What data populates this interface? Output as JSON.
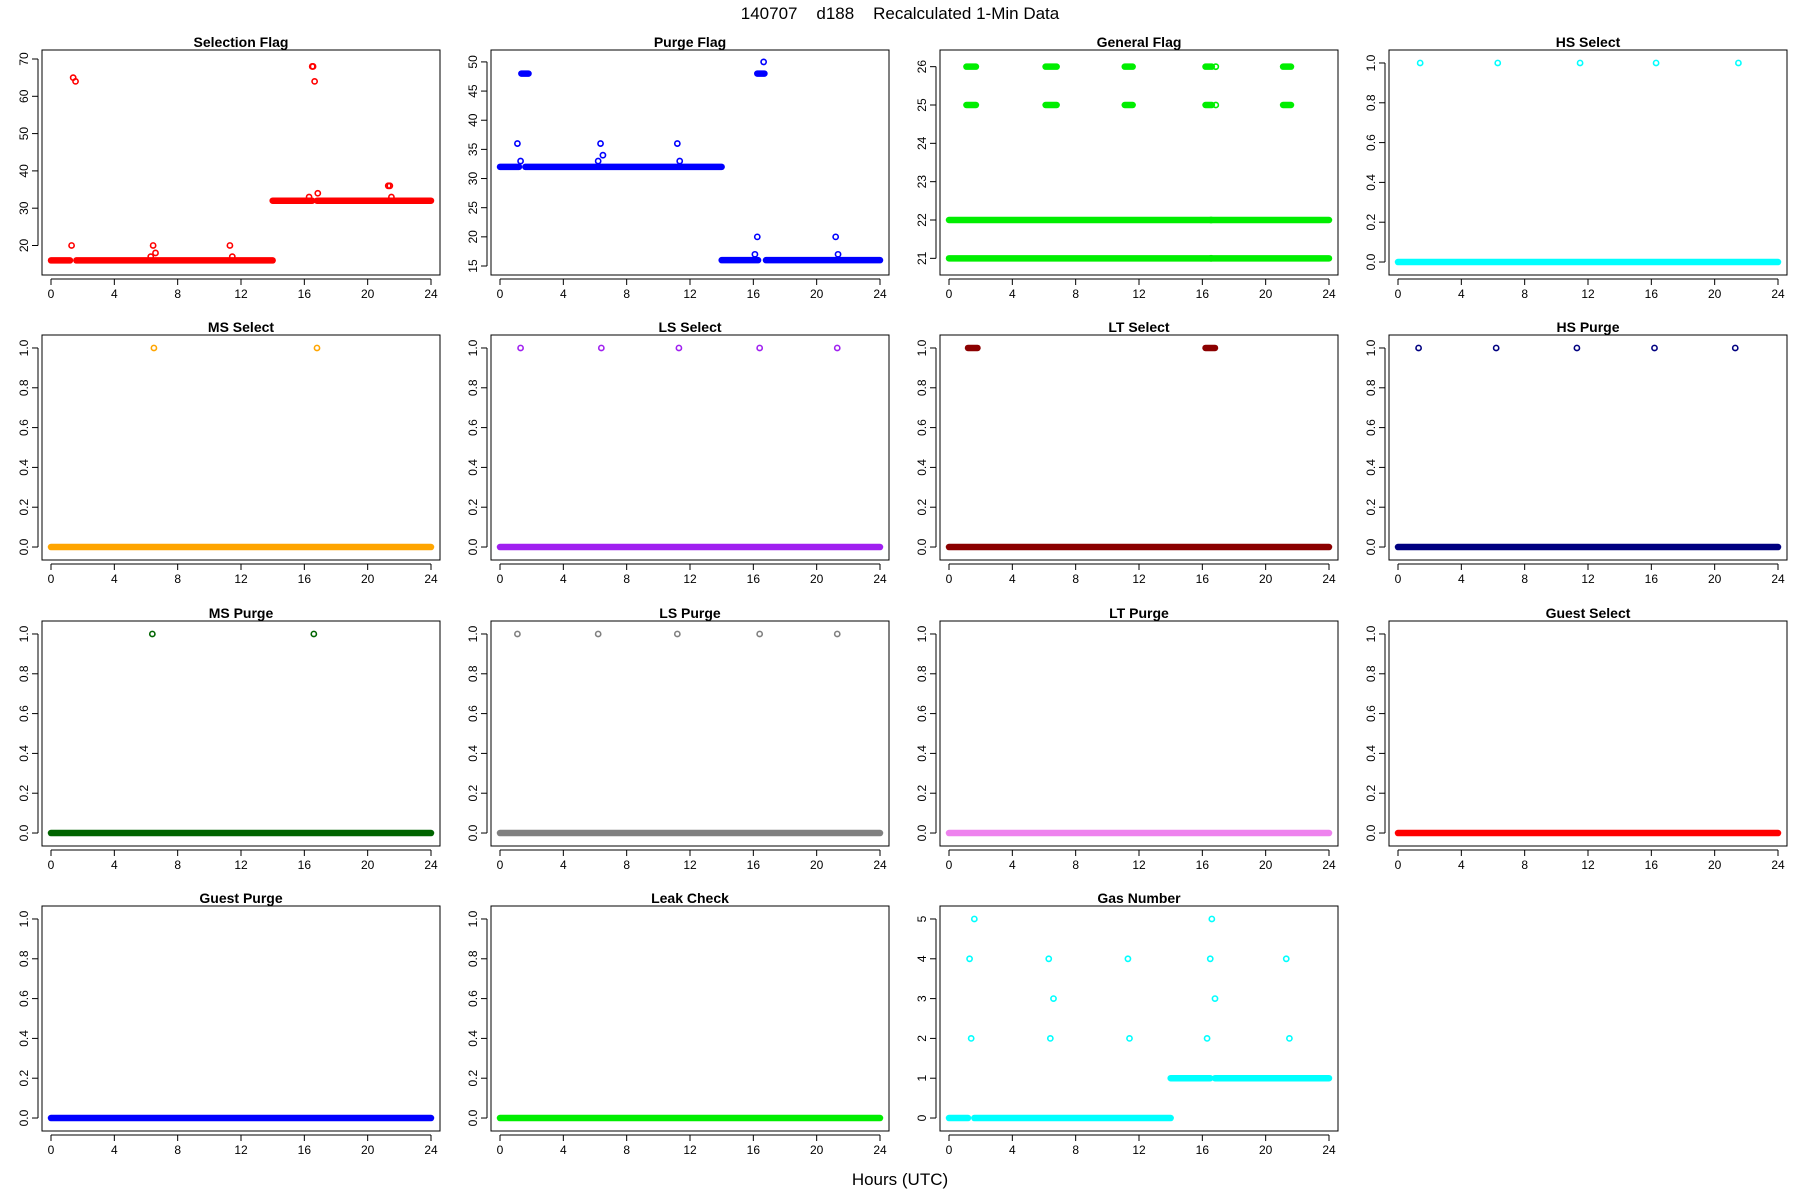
{
  "figure": {
    "title": "140707    d188    Recalculated 1-Min Data",
    "xlabel": "Hours (UTC)"
  },
  "chart_data": [
    {
      "type": "scatter",
      "title": "Selection Flag",
      "color": "#ff0000",
      "xlim": [
        0,
        24
      ],
      "ylim": [
        14.5,
        70
      ],
      "xticks": [
        0,
        4,
        8,
        12,
        16,
        20,
        24
      ],
      "yticks": [
        20,
        30,
        40,
        50,
        60,
        70
      ],
      "runs": [
        [
          0,
          1.2,
          16
        ],
        [
          1.6,
          14.0,
          16
        ],
        [
          14.0,
          16.5,
          32
        ],
        [
          16.8,
          24,
          32
        ]
      ],
      "points": [
        [
          1.3,
          20
        ],
        [
          1.4,
          65
        ],
        [
          1.55,
          64
        ],
        [
          6.3,
          17
        ],
        [
          6.45,
          20
        ],
        [
          6.6,
          18
        ],
        [
          11.3,
          20
        ],
        [
          11.45,
          17
        ],
        [
          16.3,
          33
        ],
        [
          16.5,
          68
        ],
        [
          16.55,
          68
        ],
        [
          16.65,
          64
        ],
        [
          16.85,
          34
        ],
        [
          21.3,
          36
        ],
        [
          21.4,
          36
        ],
        [
          21.5,
          33
        ]
      ]
    },
    {
      "type": "scatter",
      "title": "Purge Flag",
      "color": "#0000ff",
      "xlim": [
        0,
        24
      ],
      "ylim": [
        15,
        50.5
      ],
      "xticks": [
        0,
        4,
        8,
        12,
        16,
        20,
        24
      ],
      "yticks": [
        15,
        20,
        25,
        30,
        35,
        40,
        45,
        50
      ],
      "runs": [
        [
          0,
          1.2,
          32
        ],
        [
          1.35,
          1.8,
          48
        ],
        [
          1.6,
          14.0,
          32
        ],
        [
          14.0,
          16.3,
          16
        ],
        [
          16.25,
          16.7,
          48
        ],
        [
          16.8,
          24,
          16
        ]
      ],
      "points": [
        [
          1.1,
          36
        ],
        [
          1.3,
          33
        ],
        [
          6.2,
          33
        ],
        [
          6.35,
          36
        ],
        [
          6.5,
          34
        ],
        [
          11.2,
          36
        ],
        [
          11.35,
          33
        ],
        [
          16.1,
          17
        ],
        [
          16.25,
          20
        ],
        [
          16.65,
          50
        ],
        [
          21.2,
          20
        ],
        [
          21.35,
          17
        ]
      ]
    },
    {
      "type": "scatter",
      "title": "General Flag",
      "color": "#00ee00",
      "xlim": [
        0,
        24
      ],
      "ylim": [
        20.8,
        26.2
      ],
      "xticks": [
        0,
        4,
        8,
        12,
        16,
        20,
        24
      ],
      "yticks": [
        21,
        22,
        23,
        24,
        25,
        26
      ],
      "runs": [
        [
          0,
          24,
          21
        ],
        [
          0,
          24,
          22
        ],
        [
          1.1,
          1.7,
          26
        ],
        [
          1.1,
          1.7,
          25
        ],
        [
          6.1,
          6.8,
          26
        ],
        [
          6.1,
          6.8,
          25
        ],
        [
          11.1,
          11.6,
          26
        ],
        [
          11.1,
          11.6,
          25
        ],
        [
          16.2,
          16.6,
          26
        ],
        [
          16.2,
          16.6,
          25
        ],
        [
          21.1,
          21.6,
          26
        ],
        [
          21.1,
          21.6,
          25
        ]
      ],
      "points": [
        [
          16.85,
          26
        ],
        [
          16.85,
          25
        ],
        [
          16.55,
          22
        ],
        [
          16.55,
          21
        ]
      ]
    },
    {
      "type": "scatter",
      "title": "HS Select",
      "color": "#00ffff",
      "xlim": [
        0,
        24
      ],
      "ylim": [
        -0.02,
        1.02
      ],
      "xticks": [
        0,
        4,
        8,
        12,
        16,
        20,
        24
      ],
      "yticks": [
        0.0,
        0.2,
        0.4,
        0.6,
        0.8,
        1.0
      ],
      "runs": [
        [
          0,
          24,
          0
        ]
      ],
      "points": [
        [
          1.4,
          1
        ],
        [
          6.3,
          1
        ],
        [
          11.5,
          1
        ],
        [
          16.3,
          1
        ],
        [
          21.5,
          1
        ]
      ]
    },
    {
      "type": "scatter",
      "title": "MS Select",
      "color": "#ffa500",
      "xlim": [
        0,
        24
      ],
      "ylim": [
        -0.02,
        1.02
      ],
      "xticks": [
        0,
        4,
        8,
        12,
        16,
        20,
        24
      ],
      "yticks": [
        0.0,
        0.2,
        0.4,
        0.6,
        0.8,
        1.0
      ],
      "runs": [
        [
          0,
          24,
          0
        ]
      ],
      "points": [
        [
          6.5,
          1
        ],
        [
          16.8,
          1
        ]
      ]
    },
    {
      "type": "scatter",
      "title": "LS Select",
      "color": "#a020f0",
      "xlim": [
        0,
        24
      ],
      "ylim": [
        -0.02,
        1.02
      ],
      "xticks": [
        0,
        4,
        8,
        12,
        16,
        20,
        24
      ],
      "yticks": [
        0.0,
        0.2,
        0.4,
        0.6,
        0.8,
        1.0
      ],
      "runs": [
        [
          0,
          24,
          0
        ]
      ],
      "points": [
        [
          1.3,
          1
        ],
        [
          6.4,
          1
        ],
        [
          11.3,
          1
        ],
        [
          16.4,
          1
        ],
        [
          21.3,
          1
        ]
      ]
    },
    {
      "type": "scatter",
      "title": "LT Select",
      "color": "#8b0000",
      "xlim": [
        0,
        24
      ],
      "ylim": [
        -0.02,
        1.02
      ],
      "xticks": [
        0,
        4,
        8,
        12,
        16,
        20,
        24
      ],
      "yticks": [
        0.0,
        0.2,
        0.4,
        0.6,
        0.8,
        1.0
      ],
      "runs": [
        [
          0,
          24,
          0
        ],
        [
          1.2,
          1.8,
          1
        ],
        [
          16.2,
          16.8,
          1
        ]
      ],
      "points": []
    },
    {
      "type": "scatter",
      "title": "HS Purge",
      "color": "#000080",
      "xlim": [
        0,
        24
      ],
      "ylim": [
        -0.02,
        1.02
      ],
      "xticks": [
        0,
        4,
        8,
        12,
        16,
        20,
        24
      ],
      "yticks": [
        0.0,
        0.2,
        0.4,
        0.6,
        0.8,
        1.0
      ],
      "runs": [
        [
          0,
          24,
          0
        ]
      ],
      "points": [
        [
          1.3,
          1
        ],
        [
          6.2,
          1
        ],
        [
          11.3,
          1
        ],
        [
          16.2,
          1
        ],
        [
          21.3,
          1
        ]
      ]
    },
    {
      "type": "scatter",
      "title": "MS Purge",
      "color": "#006400",
      "xlim": [
        0,
        24
      ],
      "ylim": [
        -0.02,
        1.02
      ],
      "xticks": [
        0,
        4,
        8,
        12,
        16,
        20,
        24
      ],
      "yticks": [
        0.0,
        0.2,
        0.4,
        0.6,
        0.8,
        1.0
      ],
      "runs": [
        [
          0,
          24,
          0
        ]
      ],
      "points": [
        [
          6.4,
          1
        ],
        [
          16.6,
          1
        ]
      ]
    },
    {
      "type": "scatter",
      "title": "LS Purge",
      "color": "#808080",
      "xlim": [
        0,
        24
      ],
      "ylim": [
        -0.02,
        1.02
      ],
      "xticks": [
        0,
        4,
        8,
        12,
        16,
        20,
        24
      ],
      "yticks": [
        0.0,
        0.2,
        0.4,
        0.6,
        0.8,
        1.0
      ],
      "runs": [
        [
          0,
          24,
          0
        ]
      ],
      "points": [
        [
          1.1,
          1
        ],
        [
          6.2,
          1
        ],
        [
          11.2,
          1
        ],
        [
          16.4,
          1
        ],
        [
          21.3,
          1
        ]
      ]
    },
    {
      "type": "scatter",
      "title": "LT Purge",
      "color": "#ee82ee",
      "xlim": [
        0,
        24
      ],
      "ylim": [
        -0.02,
        1.02
      ],
      "xticks": [
        0,
        4,
        8,
        12,
        16,
        20,
        24
      ],
      "yticks": [
        0.0,
        0.2,
        0.4,
        0.6,
        0.8,
        1.0
      ],
      "runs": [
        [
          0,
          24,
          0
        ]
      ],
      "points": []
    },
    {
      "type": "scatter",
      "title": "Guest Select",
      "color": "#ff0000",
      "xlim": [
        0,
        24
      ],
      "ylim": [
        -0.02,
        1.02
      ],
      "xticks": [
        0,
        4,
        8,
        12,
        16,
        20,
        24
      ],
      "yticks": [
        0.0,
        0.2,
        0.4,
        0.6,
        0.8,
        1.0
      ],
      "runs": [
        [
          0,
          24,
          0
        ]
      ],
      "points": []
    },
    {
      "type": "scatter",
      "title": "Guest Purge",
      "color": "#0000ff",
      "xlim": [
        0,
        24
      ],
      "ylim": [
        -0.02,
        1.02
      ],
      "xticks": [
        0,
        4,
        8,
        12,
        16,
        20,
        24
      ],
      "yticks": [
        0.0,
        0.2,
        0.4,
        0.6,
        0.8,
        1.0
      ],
      "runs": [
        [
          0,
          24,
          0
        ]
      ],
      "points": []
    },
    {
      "type": "scatter",
      "title": "Leak Check",
      "color": "#00ee00",
      "xlim": [
        0,
        24
      ],
      "ylim": [
        -0.02,
        1.02
      ],
      "xticks": [
        0,
        4,
        8,
        12,
        16,
        20,
        24
      ],
      "yticks": [
        0.0,
        0.2,
        0.4,
        0.6,
        0.8,
        1.0
      ],
      "runs": [
        [
          0,
          24,
          0
        ]
      ],
      "points": []
    },
    {
      "type": "scatter",
      "title": "Gas Number",
      "color": "#00ffff",
      "xlim": [
        0,
        24
      ],
      "ylim": [
        -0.1,
        5.1
      ],
      "xticks": [
        0,
        4,
        8,
        12,
        16,
        20,
        24
      ],
      "yticks": [
        0,
        1,
        2,
        3,
        4,
        5
      ],
      "runs": [
        [
          0,
          1.2,
          0
        ],
        [
          1.6,
          14.0,
          0
        ],
        [
          14.0,
          16.5,
          1
        ],
        [
          16.8,
          24,
          1
        ]
      ],
      "points": [
        [
          1.3,
          4
        ],
        [
          1.4,
          2
        ],
        [
          1.6,
          5
        ],
        [
          6.3,
          4
        ],
        [
          6.4,
          2
        ],
        [
          6.6,
          3
        ],
        [
          11.3,
          4
        ],
        [
          11.4,
          2
        ],
        [
          16.3,
          2
        ],
        [
          16.5,
          4
        ],
        [
          16.6,
          5
        ],
        [
          16.8,
          3
        ],
        [
          21.3,
          4
        ],
        [
          21.5,
          2
        ]
      ]
    }
  ]
}
